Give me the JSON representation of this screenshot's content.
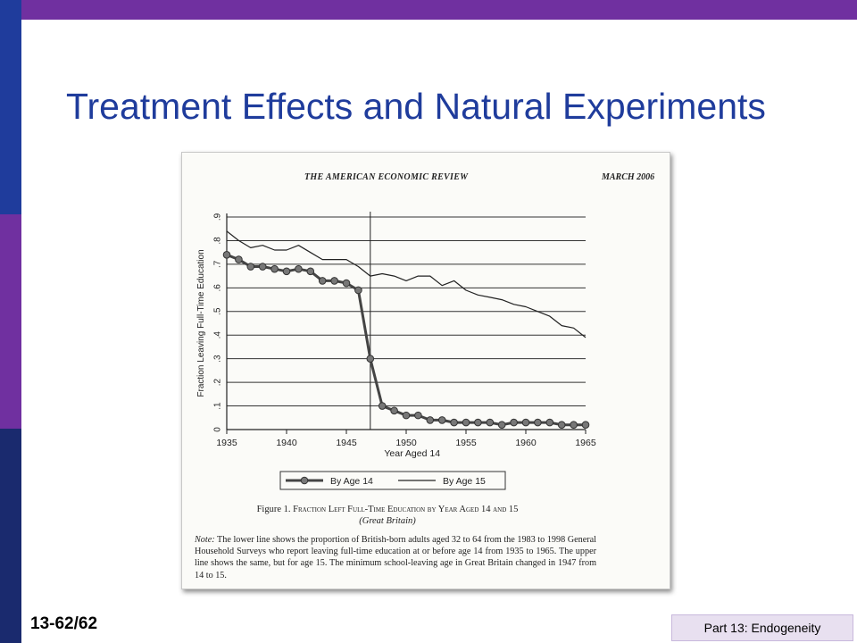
{
  "slide": {
    "title": "Treatment Effects and Natural Experiments",
    "number": "13-62/62",
    "part": "Part 13: Endogeneity"
  },
  "colors": {
    "title": "#1f3c9c",
    "purple": "#7030a0",
    "blue": "#1f3c9c",
    "navy": "#1a2a6e",
    "part_bg": "#e8e0f0"
  },
  "scan": {
    "journal": "THE AMERICAN ECONOMIC REVIEW",
    "issue": "MARCH 2006",
    "figure_label": "Figure 1.",
    "figure_title": "Fraction Left Full-Time Education by Year Aged 14 and 15",
    "figure_subtitle": "(Great Britain)",
    "note_label": "Note:",
    "note_text": "The lower line shows the proportion of British-born adults aged 32 to 64 from the 1983 to 1998 General Household Surveys who report leaving full-time education at or before age 14 from 1935 to 1965. The upper line shows the same, but for age 15. The minimum school-leaving age in Great Britain changed in 1947 from 14 to 15."
  },
  "chart_data": {
    "type": "line",
    "xlabel": "Year Aged 14",
    "ylabel": "Fraction Leaving Full-Time Education",
    "xlim": [
      1935,
      1965
    ],
    "ylim": [
      0,
      0.9
    ],
    "x_ticks": [
      "1935",
      "1940",
      "1945",
      "1950",
      "1955",
      "1960",
      "1965"
    ],
    "y_ticks": [
      "0",
      ".1",
      ".2",
      ".3",
      ".4",
      ".5",
      ".6",
      ".7",
      ".8",
      ".9"
    ],
    "grid": true,
    "vertical_reference_line": 1947,
    "legend_position": "bottom",
    "series": [
      {
        "name": "By Age 14",
        "marker": "circle",
        "x": [
          1935,
          1936,
          1937,
          1938,
          1939,
          1940,
          1941,
          1942,
          1943,
          1944,
          1945,
          1946,
          1947,
          1948,
          1949,
          1950,
          1951,
          1952,
          1953,
          1954,
          1955,
          1956,
          1957,
          1958,
          1959,
          1960,
          1961,
          1962,
          1963,
          1964,
          1965
        ],
        "values": [
          0.74,
          0.72,
          0.69,
          0.69,
          0.68,
          0.67,
          0.68,
          0.67,
          0.63,
          0.63,
          0.62,
          0.59,
          0.3,
          0.1,
          0.08,
          0.06,
          0.06,
          0.04,
          0.04,
          0.03,
          0.03,
          0.03,
          0.03,
          0.02,
          0.03,
          0.03,
          0.03,
          0.03,
          0.02,
          0.02,
          0.02
        ]
      },
      {
        "name": "By Age 15",
        "marker": "none",
        "x": [
          1935,
          1936,
          1937,
          1938,
          1939,
          1940,
          1941,
          1942,
          1943,
          1944,
          1945,
          1946,
          1947,
          1948,
          1949,
          1950,
          1951,
          1952,
          1953,
          1954,
          1955,
          1956,
          1957,
          1958,
          1959,
          1960,
          1961,
          1962,
          1963,
          1964,
          1965
        ],
        "values": [
          0.84,
          0.8,
          0.77,
          0.78,
          0.76,
          0.76,
          0.78,
          0.75,
          0.72,
          0.72,
          0.72,
          0.69,
          0.65,
          0.66,
          0.65,
          0.63,
          0.65,
          0.65,
          0.61,
          0.63,
          0.59,
          0.57,
          0.56,
          0.55,
          0.53,
          0.52,
          0.5,
          0.48,
          0.44,
          0.43,
          0.39
        ]
      }
    ]
  }
}
